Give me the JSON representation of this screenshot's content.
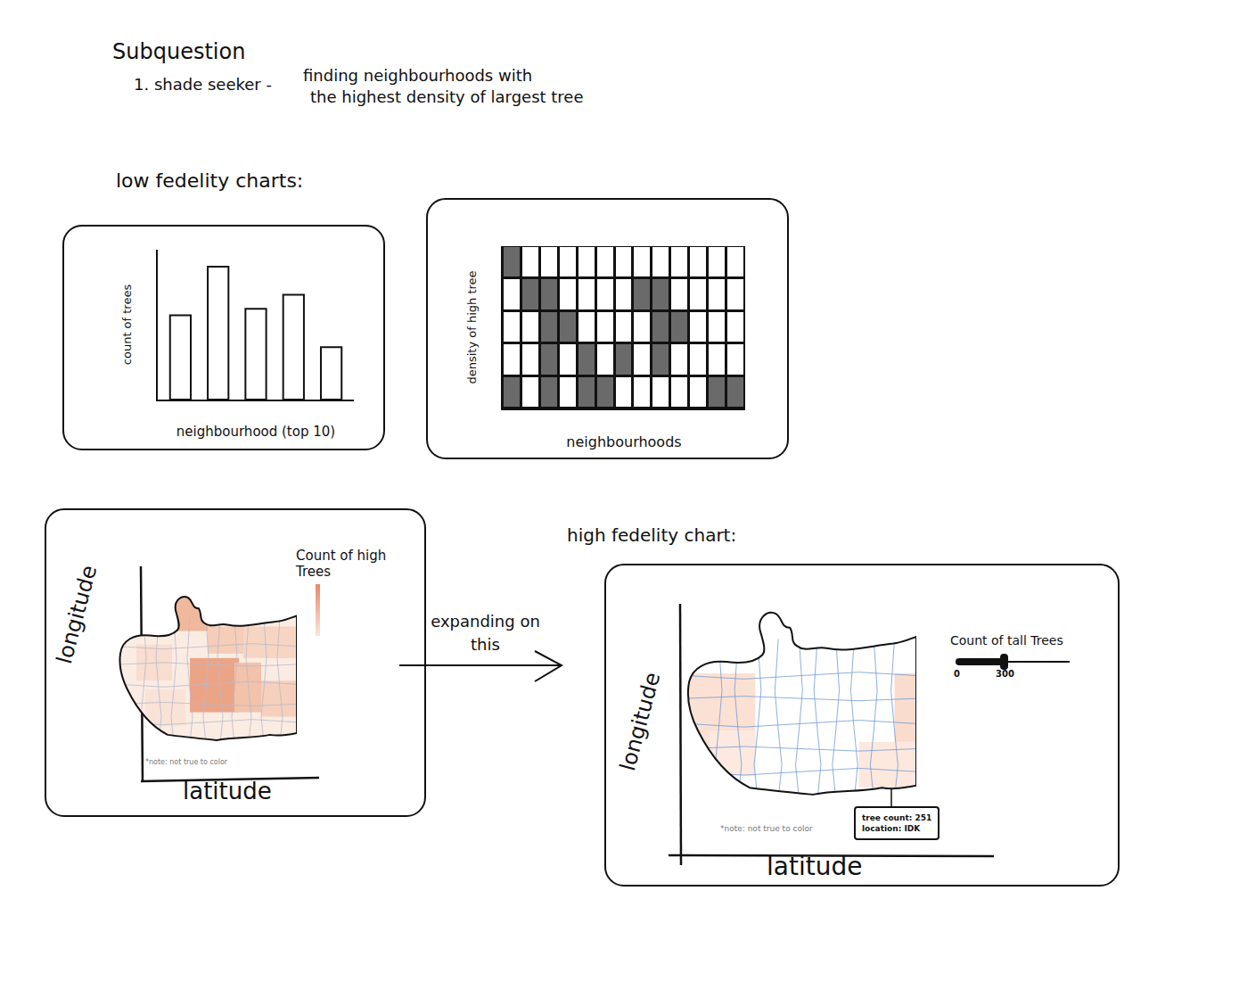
{
  "header": {
    "title": "Subquestion",
    "item": "1. shade seeker -",
    "item_lines": [
      "finding neighbourhoods with",
      "the highest density of largest tree"
    ]
  },
  "sections": {
    "low_fidelity": "low fedelity charts:",
    "high_fidelity": "high fedelity chart:"
  },
  "chart_data": [
    {
      "type": "bar",
      "categories": [
        null,
        null,
        null,
        null,
        null
      ],
      "values": [
        90,
        142,
        97,
        112,
        56
      ],
      "ylim": [
        0,
        160
      ],
      "x_label": "neighbourhood (top 10)",
      "y_label": "count of trees",
      "color": "#ffffff",
      "tick_labels": false,
      "grid": false
    },
    {
      "type": "heatmap",
      "x_label": "neighbourhoods",
      "y_label": "density of high tree",
      "cells": [
        [
          1,
          0,
          0,
          0,
          0,
          0,
          0,
          0,
          0,
          0,
          0,
          0,
          0
        ],
        [
          0,
          1,
          1,
          0,
          0,
          0,
          0,
          1,
          1,
          0,
          0,
          0,
          0
        ],
        [
          0,
          0,
          1,
          1,
          0,
          0,
          0,
          0,
          1,
          1,
          0,
          0,
          0
        ],
        [
          0,
          0,
          1,
          0,
          1,
          0,
          1,
          0,
          1,
          0,
          0,
          0,
          0
        ],
        [
          1,
          0,
          1,
          0,
          1,
          1,
          0,
          0,
          0,
          0,
          0,
          1,
          1
        ]
      ],
      "zlim": [
        0,
        1
      ],
      "tick_labels": false,
      "grid": true
    }
  ],
  "maps": [
    {
      "y_label": "longitude",
      "x_label": "latitude",
      "legend_title": "Count of high Trees",
      "note": "*note: not true to color"
    },
    {
      "y_label": "longitude",
      "x_label": "latitude",
      "slider": {
        "title": "Count of tall Trees",
        "min": 0,
        "value": 300
      },
      "tooltip": [
        "tree count: 251",
        "location: IDK"
      ],
      "note": "*note: not true to color"
    }
  ],
  "arrow_label": "expanding on this"
}
